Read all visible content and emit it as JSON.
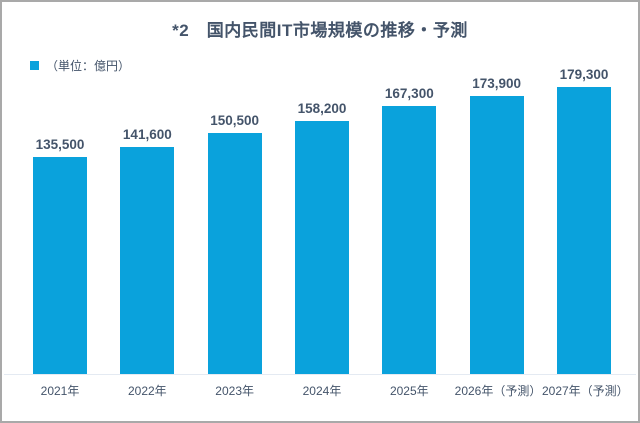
{
  "title": "*2　国内民間IT市場規模の推移・予測",
  "legend": {
    "label": "（単位：億円）",
    "swatch_color": "#0aa2dc"
  },
  "colors": {
    "bar": "#0aa2dc",
    "text": "#44546a",
    "frame_border": "#a9a9a9",
    "baseline": "#e4eaf2"
  },
  "chart_data": {
    "type": "bar",
    "title": "*2　国内民間IT市場規模の推移・予測",
    "unit_label": "（単位：億円）",
    "categories": [
      "2021年",
      "2022年",
      "2023年",
      "2024年",
      "2025年",
      "2026年（予測）",
      "2027年（予測）"
    ],
    "values": [
      135500,
      141600,
      150500,
      158200,
      167300,
      173900,
      179300
    ],
    "value_labels": [
      "135,500",
      "141,600",
      "150,500",
      "158,200",
      "167,300",
      "173,900",
      "179,300"
    ],
    "bar_color": "#0aa2dc",
    "label_color": "#44546a",
    "ylim": [
      0,
      190000
    ],
    "grid": false,
    "legend_position": "top-left",
    "xlabel": "",
    "ylabel": ""
  }
}
